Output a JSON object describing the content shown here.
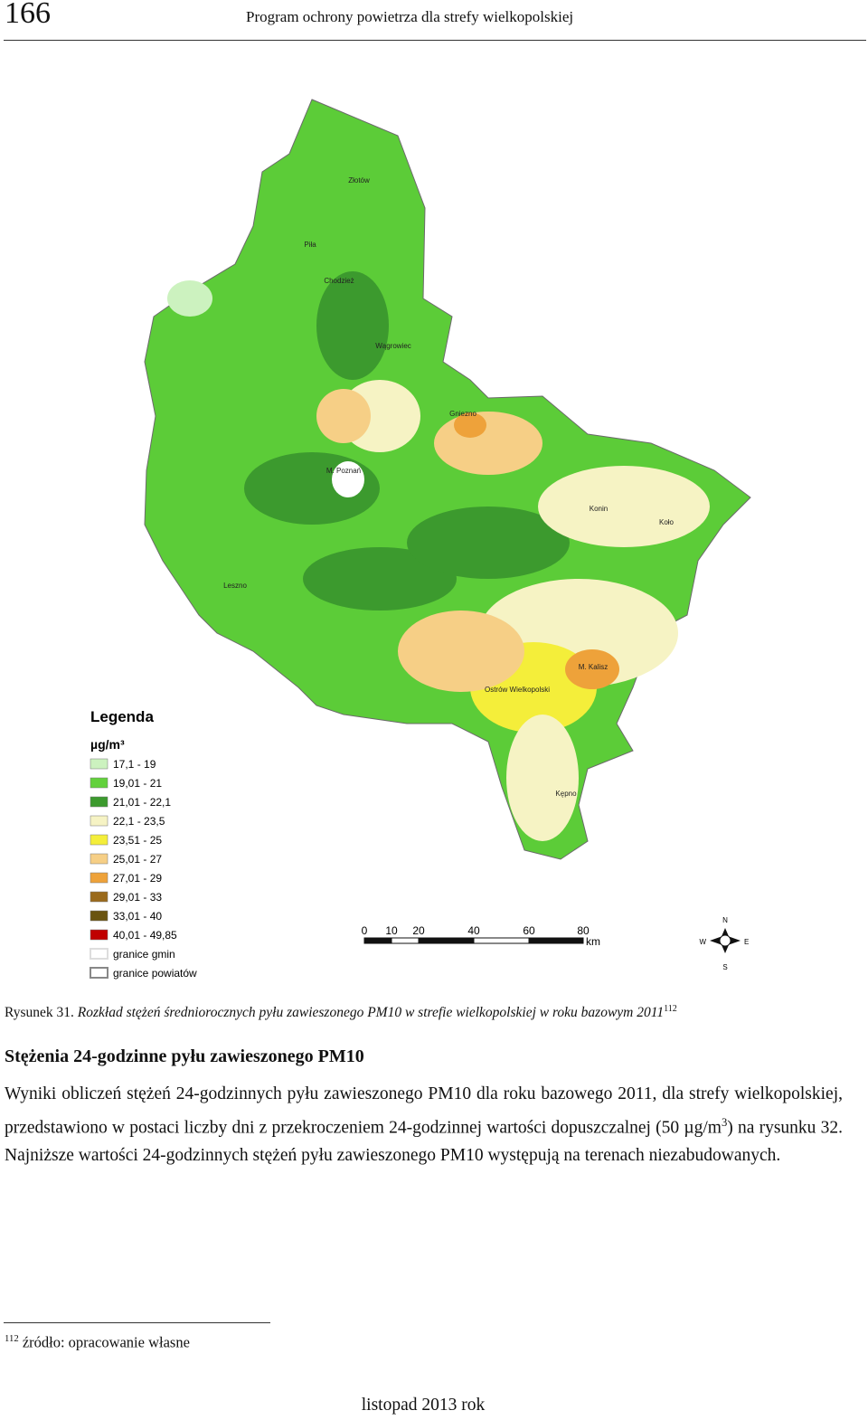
{
  "header": {
    "page_number": "166",
    "title": "Program ochrony powietrza dla strefy wielkopolskiej"
  },
  "figure": {
    "legend": {
      "title": "Legenda",
      "unit": "µg/m³",
      "items": [
        {
          "label": "17,1 - 19",
          "color": "#ccf2bf"
        },
        {
          "label": "19,01 - 21",
          "color": "#62d13c"
        },
        {
          "label": "21,01 - 22,1",
          "color": "#3c9a2e"
        },
        {
          "label": "22,1 - 23,5",
          "color": "#f6f3c4"
        },
        {
          "label": "23,51 - 25",
          "color": "#f4ee3a"
        },
        {
          "label": "25,01 - 27",
          "color": "#f6cf86"
        },
        {
          "label": "27,01 - 29",
          "color": "#eea23a"
        },
        {
          "label": "29,01 - 33",
          "color": "#9a6a1c"
        },
        {
          "label": "33,01 - 40",
          "color": "#6a5410"
        },
        {
          "label": "40,01 - 49,85",
          "color": "#c00000"
        },
        {
          "label": "granice gmin",
          "color": "#dddddd"
        },
        {
          "label": "granice powiatów",
          "color": "#888888"
        }
      ]
    },
    "scale": {
      "ticks": [
        "0",
        "10",
        "20",
        "40",
        "60",
        "80"
      ],
      "unit": "km"
    },
    "compass": {
      "north": "N",
      "east": "E",
      "south": "S",
      "west": "W"
    },
    "places": [
      "Piła",
      "Złotów",
      "Chodzież",
      "Wągrowiec",
      "M. Poznań",
      "Gniezno",
      "Konin",
      "Koło",
      "M. Kalisz",
      "Ostrów Wielkopolski",
      "Kępno",
      "Leszno"
    ],
    "caption": {
      "label": "Rysunek 31.",
      "text": "Rozkład stężeń średniorocznych pyłu zawieszonego PM10 w strefie wielkopolskiej w roku bazowym 2011",
      "note_ref": "112"
    }
  },
  "section": {
    "heading": "Stężenia 24-godzinne pyłu zawieszonego PM10",
    "paragraph": [
      "Wyniki obliczeń stężeń 24-godzinnych pyłu zawieszonego PM10 dla roku bazowego 2011, dla strefy wielkopolskiej, przedstawiono w postaci liczby dni z przekroczeniem 24-godzinnej wartości dopuszczalnej (50 µg/m",
      "3",
      ") na rysunku 32. Najniższe wartości 24-godzinnych stężeń pyłu zawieszonego PM10 występują na terenach niezabudowanych."
    ]
  },
  "footnote": {
    "ref": "112",
    "text": "źródło: opracowanie własne"
  },
  "footer": "listopad 2013 rok"
}
